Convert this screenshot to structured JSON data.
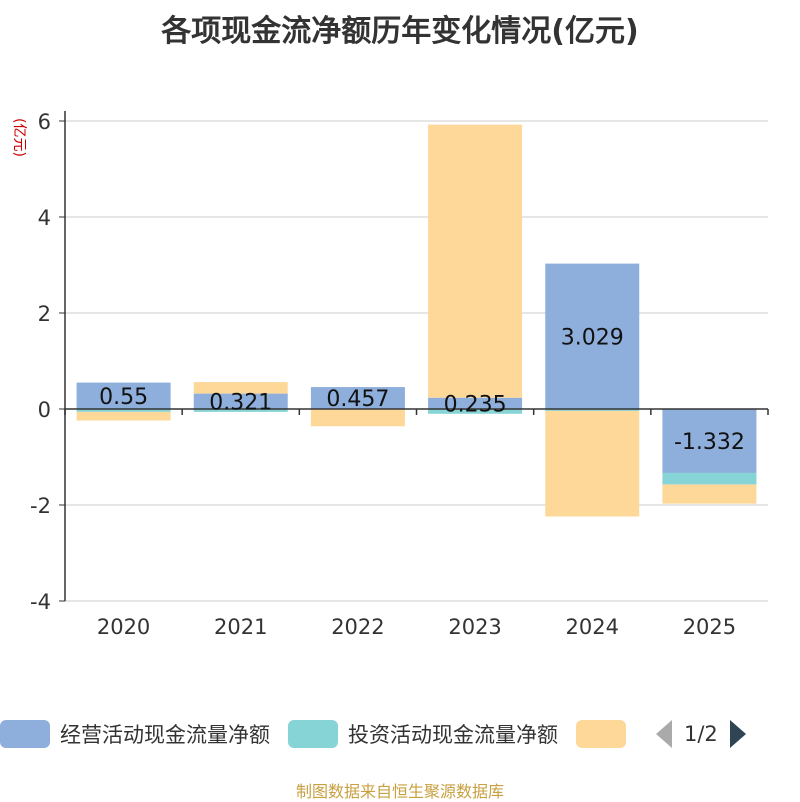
{
  "title": "各项现金流净额历年变化情况(亿元)",
  "unit_label": "(亿元)",
  "source": "制图数据来自恒生聚源数据库",
  "legend": {
    "items": [
      {
        "label": "经营活动现金流量净额",
        "color": "#8eaedb"
      },
      {
        "label": "投资活动现金流量净额",
        "color": "#86d4d6"
      },
      {
        "label": "",
        "color": "#fdd899"
      }
    ],
    "page": "1/2"
  },
  "chart_data": {
    "type": "bar",
    "stacked": true,
    "categories": [
      "2020",
      "2021",
      "2022",
      "2023",
      "2024",
      "2025"
    ],
    "ylim": [
      -4,
      6
    ],
    "yticks": [
      -4,
      -2,
      0,
      2,
      4,
      6
    ],
    "grid": true,
    "legend_position": "bottom",
    "series": [
      {
        "name": "经营活动现金流量净额",
        "color": "#8eaedb",
        "values": [
          0.55,
          0.321,
          0.457,
          0.235,
          3.029,
          -1.332
        ],
        "labels": [
          "0.55",
          "0.321",
          "0.457",
          "0.235",
          "3.029",
          "-1.332"
        ]
      },
      {
        "name": "投资活动现金流量净额",
        "color": "#86d4d6",
        "values": [
          -0.06,
          -0.06,
          -0.01,
          -0.1,
          -0.04,
          -0.24
        ]
      },
      {
        "color": "#fdd899",
        "values": [
          -0.18,
          0.24,
          -0.35,
          5.69,
          -2.2,
          -0.4
        ]
      }
    ]
  }
}
